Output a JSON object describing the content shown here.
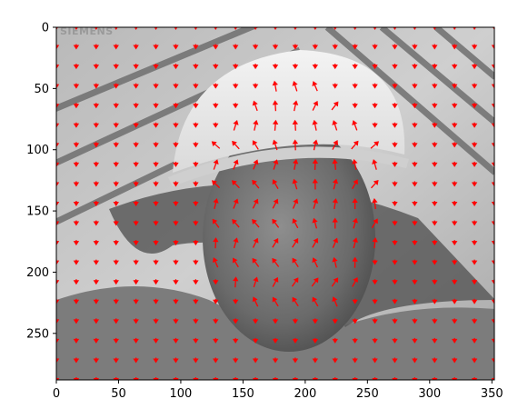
{
  "chart_data": {
    "type": "quiver",
    "title": "",
    "xlabel": "",
    "ylabel": "",
    "xlim": [
      0,
      352
    ],
    "ylim": [
      288,
      0
    ],
    "x_ticks": [
      0,
      50,
      100,
      150,
      200,
      250,
      300,
      350
    ],
    "y_ticks": [
      0,
      50,
      100,
      150,
      200,
      250
    ],
    "x_tick_labels": [
      "0",
      "50",
      "100",
      "150",
      "200",
      "250",
      "300",
      "350"
    ],
    "y_tick_labels": [
      "0",
      "50",
      "100",
      "150",
      "200",
      "250"
    ],
    "grid": false,
    "legend": "none",
    "arrow_color": "#ff0000",
    "background": "grayscale photograph of a man wearing a white hard hat",
    "watermark_text": "SIEMENS",
    "grid_spacing": 16,
    "field_description": "optical flow field; arrows point mostly downward across the image, with upward and divergent motion over the hard hat and face"
  }
}
